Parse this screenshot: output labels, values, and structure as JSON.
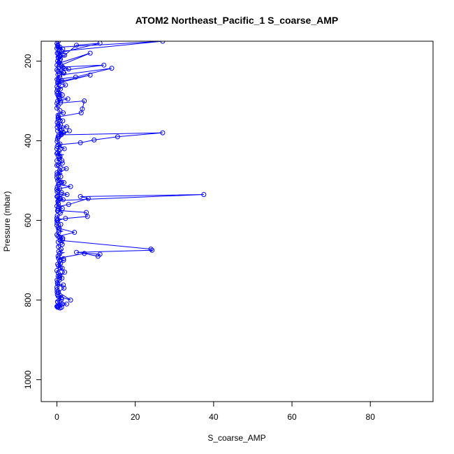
{
  "chart_data": {
    "type": "line",
    "title": "ATOM2 Northeast_Pacific_1 S_coarse_AMP",
    "xlabel": "S_coarse_AMP",
    "ylabel": "Pressure (mbar)",
    "xlim": [
      -4,
      96
    ],
    "ylim": [
      1055,
      150
    ],
    "y_reversed": true,
    "xticks": [
      0,
      20,
      40,
      60,
      80
    ],
    "yticks": [
      200,
      400,
      600,
      800,
      1000
    ],
    "grid": false,
    "legend": "none",
    "series": [
      {
        "color": "#0000ff",
        "marker": "open-circle",
        "x": [
          0.2,
          0.8,
          1.5,
          0.3,
          27.0,
          1.2,
          0.4,
          11.0,
          5.0,
          2.0,
          0.3,
          0.9,
          1.6,
          0.2,
          0.6,
          8.5,
          1.1,
          3.0,
          0.5,
          12.0,
          0.3,
          1.8,
          0.7,
          14.0,
          4.8,
          0.4,
          1.3,
          8.5,
          0.2,
          2.2,
          0.9,
          0.3,
          1.4,
          0.6,
          2.8,
          0.2,
          0.9,
          7.0,
          6.5,
          6.2,
          0.4,
          1.5,
          0.3,
          2.5,
          0.8,
          0.2,
          1.7,
          0.5,
          3.2,
          0.3,
          1.1,
          27.0,
          15.5,
          9.5,
          6.0,
          0.4,
          1.9,
          0.2,
          0.8,
          1.3,
          0.3,
          2.4,
          0.6,
          1.0,
          0.2,
          1.8,
          0.4,
          3.5,
          0.7,
          0.3,
          1.2,
          2.6,
          0.2,
          0.9,
          1.6,
          0.4,
          37.5,
          6.0,
          8.0,
          3.0,
          0.5,
          1.4,
          0.3,
          7.5,
          7.8,
          2.2,
          0.2,
          1.0,
          0.6,
          4.5,
          0.3,
          1.5,
          0.8,
          24.0,
          24.3,
          5.0,
          11.0,
          10.5,
          7.0,
          0.4,
          1.7,
          0.2,
          0.9,
          2.0,
          0.3,
          1.3,
          0.6,
          0.2,
          1.8,
          0.4,
          3.5,
          0.3,
          1.1,
          0.2,
          2.5,
          0.5,
          0.2,
          1.2,
          0.3,
          0.8,
          0.2
        ],
        "y": [
          160,
          165,
          170,
          165,
          150,
          175,
          180,
          155,
          160,
          185,
          190,
          195,
          185,
          200,
          205,
          180,
          210,
          220,
          215,
          210,
          225,
          230,
          235,
          218,
          240,
          245,
          250,
          235,
          255,
          260,
          270,
          280,
          285,
          290,
          295,
          300,
          305,
          300,
          320,
          330,
          340,
          350,
          360,
          365,
          370,
          375,
          380,
          385,
          375,
          390,
          385,
          380,
          390,
          398,
          405,
          410,
          420,
          430,
          440,
          450,
          460,
          470,
          480,
          490,
          500,
          505,
          510,
          515,
          520,
          525,
          530,
          535,
          540,
          545,
          548,
          550,
          535,
          540,
          545,
          560,
          565,
          570,
          575,
          580,
          590,
          595,
          600,
          610,
          620,
          630,
          640,
          645,
          650,
          672,
          675,
          680,
          685,
          690,
          683,
          695,
          700,
          710,
          720,
          730,
          740,
          745,
          750,
          760,
          770,
          780,
          800,
          790,
          795,
          805,
          810,
          815,
          815,
          818,
          818,
          820,
          818
        ]
      }
    ],
    "dense_band": {
      "x_min": 0,
      "x_max": 1.8,
      "y_min": 150,
      "y_max": 820,
      "color": "#0000ff"
    }
  }
}
